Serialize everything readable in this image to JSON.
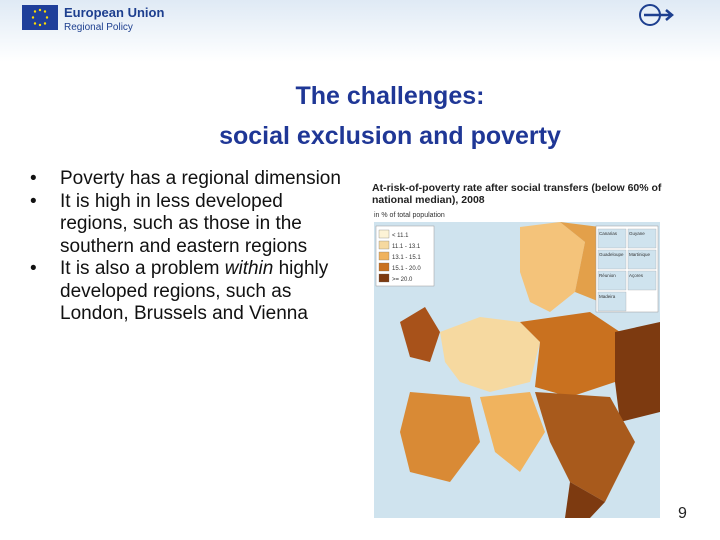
{
  "header": {
    "brand": "European Union",
    "subbrand": "Regional Policy"
  },
  "title": [
    "The challenges:",
    "social exclusion  and poverty"
  ],
  "bullets": [
    [
      "Poverty has a regional dimension"
    ],
    [
      "It is high in less developed regions, such as those in the southern and eastern regions"
    ],
    [
      "It is also a problem ",
      "within",
      " highly developed regions, such as London, Brussels and Vienna"
    ]
  ],
  "map": {
    "title": "At-risk-of-poverty rate after social transfers (below 60% of national median), 2008",
    "subtitle": "in % of total population",
    "legend": [
      "< 11.1",
      "11.1 - 13.1",
      "13.1 - 15.1",
      "15.1 - 20.0",
      ">= 20.0"
    ],
    "insets": [
      "Canarias",
      "Guyane",
      "Guadeloupe",
      "Martinique",
      "Réunion",
      "Açores",
      "Madeira"
    ]
  },
  "page_number": "9"
}
